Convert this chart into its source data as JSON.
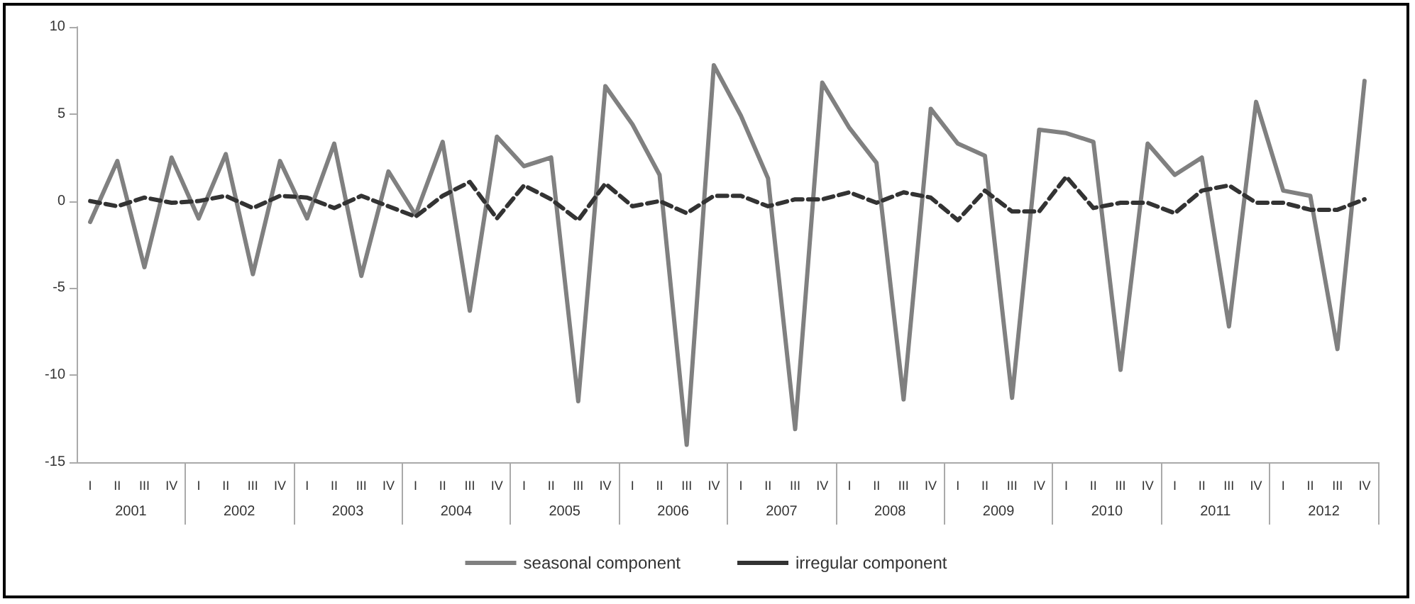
{
  "chart_data": {
    "type": "line",
    "categories": [
      "I",
      "II",
      "III",
      "IV",
      "I",
      "II",
      "III",
      "IV",
      "I",
      "II",
      "III",
      "IV",
      "I",
      "II",
      "III",
      "IV",
      "I",
      "II",
      "III",
      "IV",
      "I",
      "II",
      "III",
      "IV",
      "I",
      "II",
      "III",
      "IV",
      "I",
      "II",
      "III",
      "IV",
      "I",
      "II",
      "III",
      "IV",
      "I",
      "II",
      "III",
      "IV",
      "I",
      "II",
      "III",
      "IV",
      "I",
      "II",
      "III",
      "IV"
    ],
    "annotations": [
      "2001",
      "2002",
      "2003",
      "2004",
      "2005",
      "2006",
      "2007",
      "2008",
      "2009",
      "2010",
      "2011",
      "2012"
    ],
    "series": [
      {
        "name": "seasonal component",
        "color": "#808080",
        "line_style": "solid",
        "values": [
          -1.2,
          2.3,
          -3.8,
          2.5,
          -1.0,
          2.7,
          -4.2,
          2.3,
          -1.0,
          3.3,
          -4.3,
          1.7,
          -0.8,
          3.4,
          -6.3,
          3.7,
          2.0,
          2.5,
          -11.5,
          6.6,
          4.4,
          1.5,
          -14.0,
          7.8,
          4.9,
          1.3,
          -13.1,
          6.8,
          4.2,
          2.2,
          -11.4,
          5.3,
          3.3,
          2.6,
          -11.3,
          4.1,
          3.9,
          3.4,
          -9.7,
          3.3,
          1.5,
          2.5,
          -7.2,
          5.7,
          0.6,
          0.3,
          -8.5,
          6.9
        ]
      },
      {
        "name": "irregular component",
        "color": "#333333",
        "line_style": "dashed",
        "values": [
          0,
          -0.3,
          0.2,
          -0.1,
          0,
          0.3,
          -0.4,
          0.3,
          0.2,
          -0.4,
          0.3,
          -0.3,
          -0.9,
          0.3,
          1.1,
          -1.0,
          0.9,
          0.1,
          -1.1,
          1.0,
          -0.3,
          0,
          -0.7,
          0.3,
          0.3,
          -0.3,
          0.1,
          0.1,
          0.5,
          -0.1,
          0.5,
          0.2,
          -1.1,
          0.6,
          -0.6,
          -0.6,
          1.4,
          -0.4,
          -0.1,
          -0.1,
          -0.7,
          0.6,
          0.9,
          -0.1,
          -0.1,
          -0.5,
          -0.5,
          0.1
        ]
      }
    ],
    "ylim": [
      -15,
      10
    ],
    "yticks": [
      -15,
      -10,
      -5,
      0,
      5,
      10
    ],
    "grid": false,
    "legend": "bottom",
    "marker": "none"
  }
}
